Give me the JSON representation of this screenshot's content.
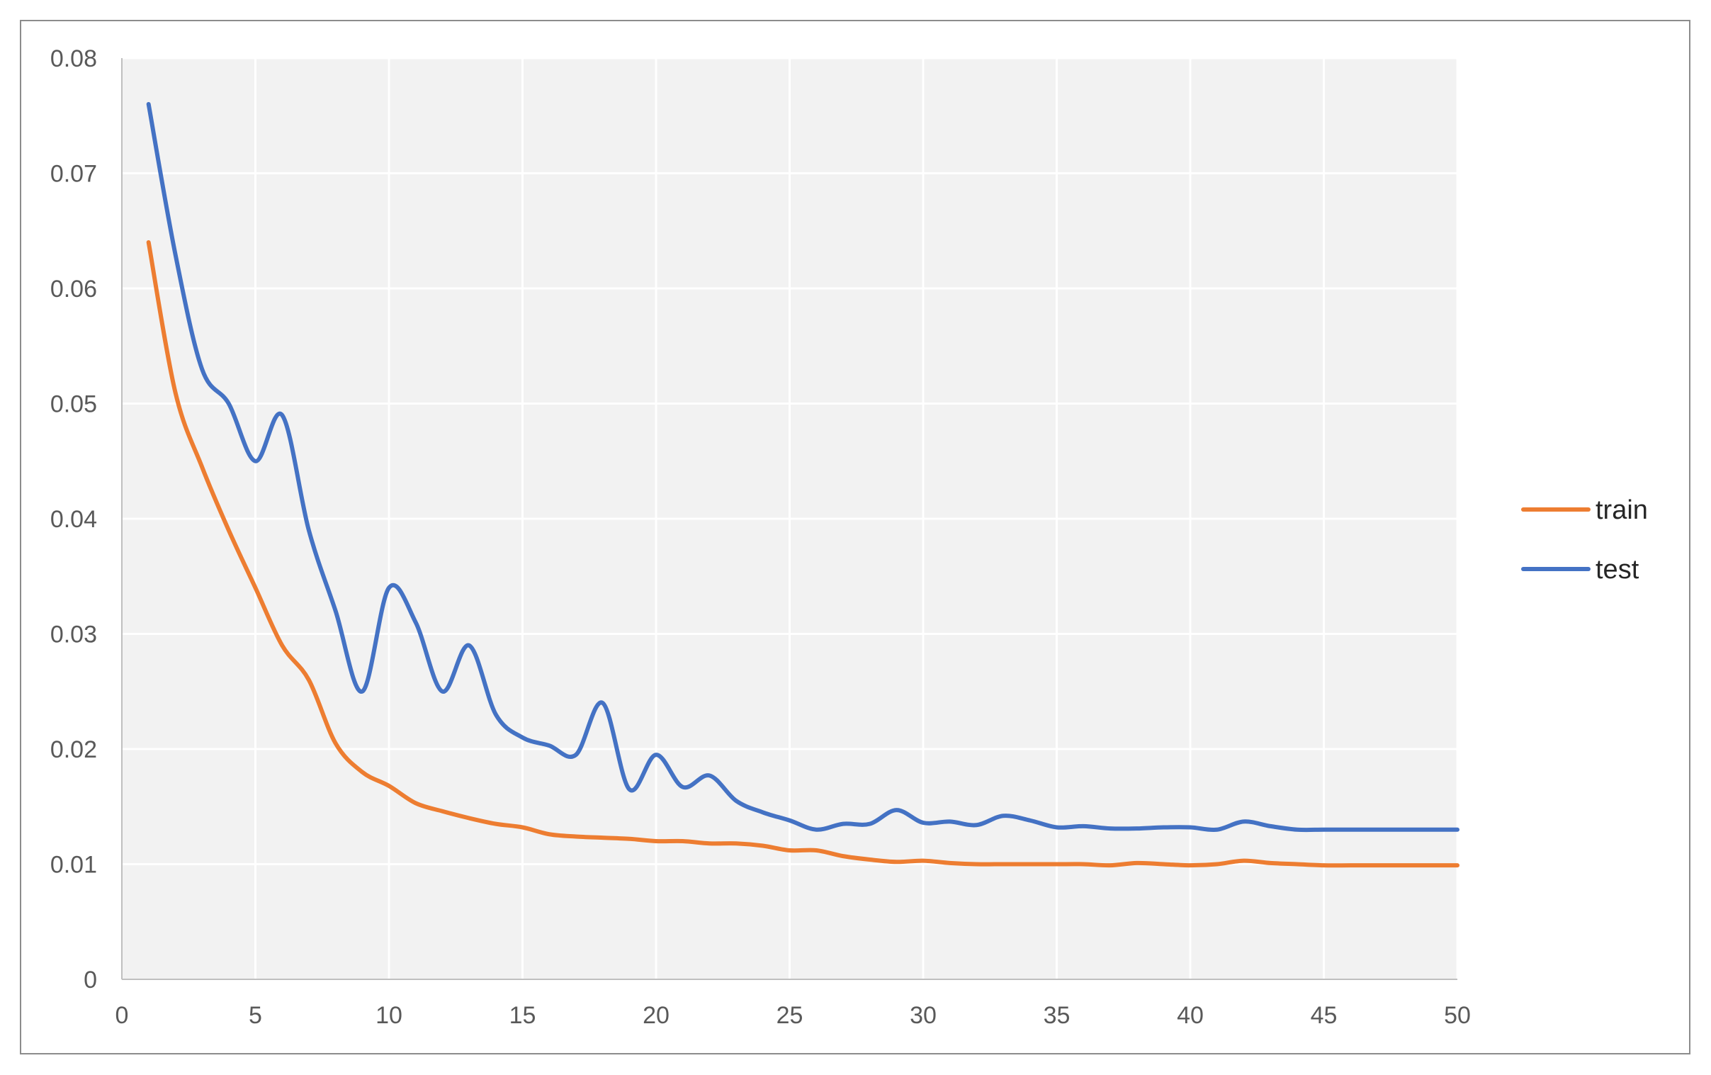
{
  "chart_data": {
    "type": "line",
    "title": "",
    "xlabel": "",
    "ylabel": "",
    "xlim": [
      0,
      50
    ],
    "ylim": [
      0,
      0.08
    ],
    "xticks": [
      0,
      5,
      10,
      15,
      20,
      25,
      30,
      35,
      40,
      45,
      50
    ],
    "xtick_labels": [
      "0",
      "5",
      "10",
      "15",
      "20",
      "25",
      "30",
      "35",
      "40",
      "45",
      "50"
    ],
    "yticks": [
      0,
      0.01,
      0.02,
      0.03,
      0.04,
      0.05,
      0.06,
      0.07,
      0.08
    ],
    "ytick_labels": [
      "0",
      "0.01",
      "0.02",
      "0.03",
      "0.04",
      "0.05",
      "0.06",
      "0.07",
      "0.08"
    ],
    "grid": true,
    "legend_position": "right",
    "plot_background": "#f2f2f2",
    "grid_color": "#ffffff",
    "x": [
      1,
      2,
      3,
      4,
      5,
      6,
      7,
      8,
      9,
      10,
      11,
      12,
      13,
      14,
      15,
      16,
      17,
      18,
      19,
      20,
      21,
      22,
      23,
      24,
      25,
      26,
      27,
      28,
      29,
      30,
      31,
      32,
      33,
      34,
      35,
      36,
      37,
      38,
      39,
      40,
      41,
      42,
      43,
      44,
      45,
      46,
      47,
      48,
      49,
      50
    ],
    "series": [
      {
        "name": "train",
        "color": "#ed7d31",
        "values": [
          0.064,
          0.051,
          0.0445,
          0.039,
          0.034,
          0.029,
          0.026,
          0.0205,
          0.018,
          0.0168,
          0.0153,
          0.0146,
          0.014,
          0.0135,
          0.0132,
          0.0126,
          0.0124,
          0.0123,
          0.0122,
          0.012,
          0.012,
          0.0118,
          0.0118,
          0.0116,
          0.0112,
          0.0112,
          0.0107,
          0.0104,
          0.0102,
          0.0103,
          0.0101,
          0.01,
          0.01,
          0.01,
          0.01,
          0.01,
          0.0099,
          0.0101,
          0.01,
          0.0099,
          0.01,
          0.0103,
          0.0101,
          0.01,
          0.0099,
          0.0099,
          0.0099,
          0.0099,
          0.0099,
          0.0099
        ]
      },
      {
        "name": "test",
        "color": "#4472c4",
        "values": [
          0.076,
          0.063,
          0.053,
          0.05,
          0.045,
          0.049,
          0.039,
          0.032,
          0.025,
          0.034,
          0.031,
          0.025,
          0.029,
          0.023,
          0.021,
          0.0203,
          0.0195,
          0.024,
          0.0165,
          0.0195,
          0.0167,
          0.0177,
          0.0155,
          0.0145,
          0.0138,
          0.013,
          0.0135,
          0.0135,
          0.0147,
          0.0136,
          0.0137,
          0.0134,
          0.0142,
          0.0138,
          0.0132,
          0.0133,
          0.0131,
          0.0131,
          0.0132,
          0.0132,
          0.013,
          0.0137,
          0.0133,
          0.013,
          0.013,
          0.013,
          0.013,
          0.013,
          0.013,
          0.013
        ]
      }
    ]
  }
}
